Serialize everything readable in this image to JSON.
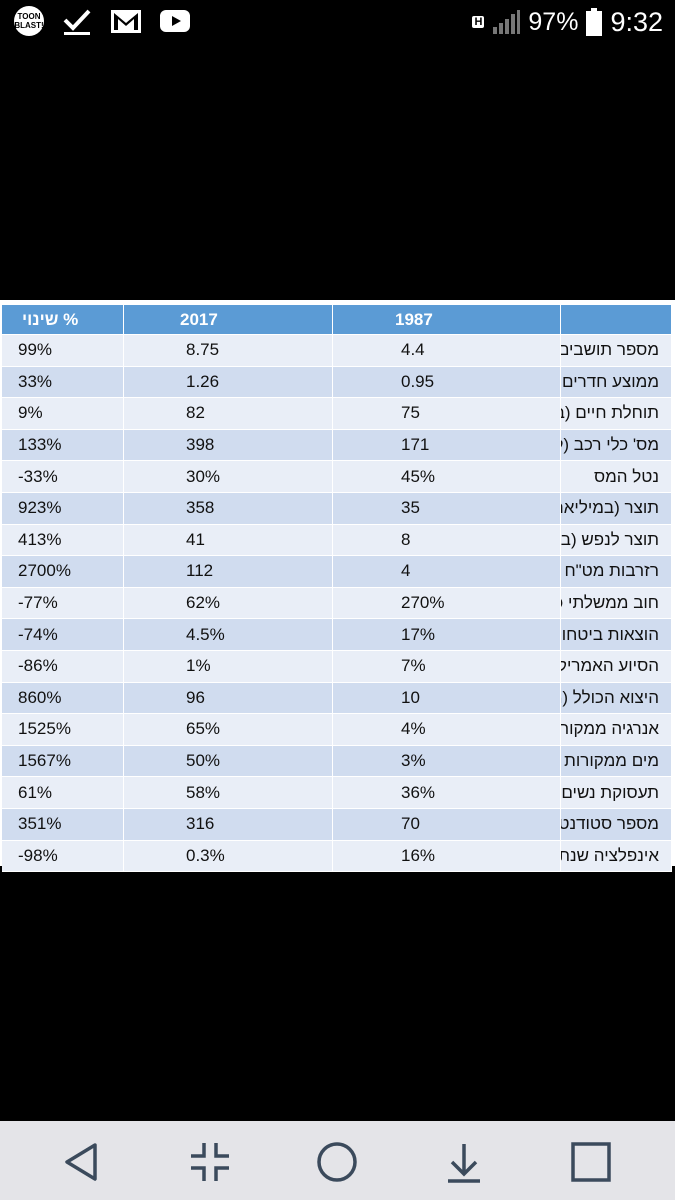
{
  "status_bar": {
    "battery": "97%",
    "time": "9:32",
    "app_icon_text": [
      "TOON",
      "BLAST!"
    ],
    "network_badge": "H",
    "icons": [
      "toon-blast-icon",
      "check-icon",
      "gmail-icon",
      "youtube-icon",
      "network-h-icon",
      "signal-icon",
      "battery-icon"
    ]
  },
  "table": {
    "headers": {
      "change": "שינוי %",
      "y2017": "2017",
      "y1987": "1987",
      "label": ""
    },
    "rows": [
      {
        "label": "מספר תושבים (במיליונים)",
        "y1987": "4.4",
        "y2017": "8.75",
        "change": "99%"
      },
      {
        "label": "ממוצע חדרים לנפש",
        "y1987": "0.95",
        "y2017": "1.26",
        "change": "33%"
      },
      {
        "label": "תוחלת חיים (בשנים)",
        "y1987": "75",
        "y2017": "82",
        "change": "9%"
      },
      {
        "label": "מס' כלי רכב (לאלף תושבים)",
        "y1987": "171",
        "y2017": "398",
        "change": "133%"
      },
      {
        "label": "נטל המס",
        "y1987": "45%",
        "y2017": "30%",
        "change": "-33%"
      },
      {
        "label": "תוצר (במיליארדי $)",
        "y1987": "35",
        "y2017": "358",
        "change": "923%"
      },
      {
        "label": "תוצר לנפש (באלפי $)",
        "y1987": "8",
        "y2017": "41",
        "change": "413%"
      },
      {
        "label": "רזרבות מט\"ח (במיליארדי $)",
        "y1987": "4",
        "y2017": "112",
        "change": "2700%"
      },
      {
        "label": "חוב ממשלתי כאחוז מהתוצר",
        "y1987": "270%",
        "y2017": "62%",
        "change": "-77%"
      },
      {
        "label": "הוצאות ביטחון כאחוז מהתוצר",
        "y1987": "17%",
        "y2017": "4.5%",
        "change": "-74%"
      },
      {
        "label": "הסיוע האמריקני כאחוז מהתוצר",
        "y1987": "7%",
        "y2017": "1%",
        "change": "-86%"
      },
      {
        "label": "היצוא הכולל (מיליארדי $)",
        "y1987": "10",
        "y2017": "96",
        "change": "860%"
      },
      {
        "label": "אנרגיה ממקורות עצמאיים",
        "y1987": "4%",
        "y2017": "65%",
        "change": "1525%"
      },
      {
        "label": "מים ממקורות מותפלים",
        "y1987": "3%",
        "y2017": "50%",
        "change": "1567%"
      },
      {
        "label": "תעסוקת נשים",
        "y1987": "36%",
        "y2017": "58%",
        "change": "61%"
      },
      {
        "label": "מספר סטודנטים (באלפים)",
        "y1987": "70",
        "y2017": "316",
        "change": "351%"
      },
      {
        "label": "אינפלציה שנתית",
        "y1987": "16%",
        "y2017": "0.3%",
        "change": "-98%"
      }
    ]
  },
  "colors": {
    "header": "#5b9bd5",
    "row_light": "#e9eef7",
    "row_dark": "#d0dcef",
    "navbar": "#e4e4e8"
  },
  "nav_bar": {
    "buttons": [
      "back-icon",
      "collapse-icon",
      "home-icon",
      "download-icon",
      "recents-icon"
    ]
  }
}
